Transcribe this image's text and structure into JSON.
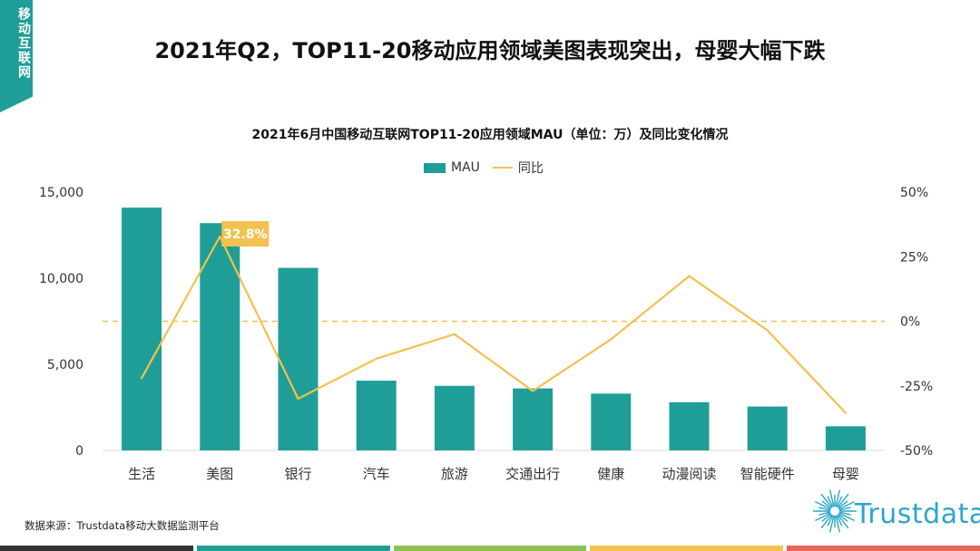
{
  "corner_tag": {
    "text": "移动互联网",
    "color": "#1f9e98"
  },
  "page_title": "2021年Q2，TOP11-20移动应用领域美图表现突出，母婴大幅下跌",
  "chart_data": {
    "type": "bar",
    "title": "2021年6月中国移动互联网TOP11-20应用领域MAU（单位：万）及同比变化情况",
    "categories": [
      "生活",
      "美图",
      "银行",
      "汽车",
      "旅游",
      "交通出行",
      "健康",
      "动漫阅读",
      "智能硬件",
      "母婴"
    ],
    "series": [
      {
        "name": "MAU",
        "kind": "bar",
        "axis": "left",
        "color": "#1f9e98",
        "values": [
          14100,
          13200,
          10600,
          4050,
          3750,
          3600,
          3300,
          2800,
          2550,
          1400
        ]
      },
      {
        "name": "同比",
        "kind": "line",
        "axis": "right",
        "color": "#f2c14e",
        "values": [
          -22,
          32.8,
          -30,
          -14.5,
          -5,
          -27,
          -7,
          17.5,
          -3.5,
          -35.5
        ]
      }
    ],
    "ylim": [
      0,
      15000
    ],
    "yticks": [
      "15,000",
      "10,000",
      "5,000",
      "0"
    ],
    "ytick_values": [
      15000,
      10000,
      5000,
      0
    ],
    "y2lim": [
      -50,
      50
    ],
    "y2ticks": [
      "50%",
      "25%",
      "0%",
      "-25%",
      "-50%"
    ],
    "y2tick_values": [
      50,
      25,
      0,
      -25,
      -50
    ],
    "highlight": {
      "index": 1,
      "label": "32.8%",
      "color": "#f2c14e"
    },
    "zero_line": {
      "value": 0,
      "axis": "right",
      "style": "dashed"
    },
    "legend": [
      "MAU",
      "同比"
    ]
  },
  "source": "数据来源：Trustdata移动大数据监测平台",
  "logo": {
    "text": "Trustdata",
    "color": "#2aa6c9"
  },
  "bottom_bar_colors": [
    "#333333",
    "#1f9e98",
    "#8cc152",
    "#f2c14e",
    "#e5675a"
  ]
}
